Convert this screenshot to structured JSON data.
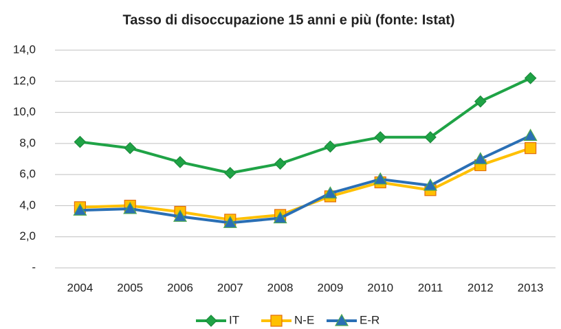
{
  "chart_data": {
    "type": "line",
    "title": "Tasso di disoccupazione  15 anni e più (fonte: Istat)",
    "categories": [
      "2004",
      "2005",
      "2006",
      "2007",
      "2008",
      "2009",
      "2010",
      "2011",
      "2012",
      "2013"
    ],
    "series": [
      {
        "name": "IT",
        "color": "#1fa346",
        "marker": "diamond",
        "values": [
          8.1,
          7.7,
          6.8,
          6.1,
          6.7,
          7.8,
          8.4,
          8.4,
          10.7,
          12.2
        ]
      },
      {
        "name": "N-E",
        "color": "#ffc000",
        "marker": "square",
        "values": [
          3.9,
          4.0,
          3.6,
          3.1,
          3.4,
          4.6,
          5.5,
          5.0,
          6.6,
          7.7
        ]
      },
      {
        "name": "E-R",
        "color": "#2a6fb5",
        "marker": "triangle",
        "values": [
          3.7,
          3.8,
          3.3,
          2.9,
          3.2,
          4.8,
          5.7,
          5.3,
          7.0,
          8.5
        ]
      }
    ],
    "ylim": [
      0,
      14
    ],
    "yticks": [
      {
        "value": 0,
        "label": "-"
      },
      {
        "value": 2,
        "label": "2,0"
      },
      {
        "value": 4,
        "label": "4,0"
      },
      {
        "value": 6,
        "label": "6,0"
      },
      {
        "value": 8,
        "label": "8,0"
      },
      {
        "value": 10,
        "label": "10,0"
      },
      {
        "value": 12,
        "label": "12,0"
      },
      {
        "value": 14,
        "label": "14,0"
      }
    ],
    "grid": true,
    "legend": "bottom"
  }
}
